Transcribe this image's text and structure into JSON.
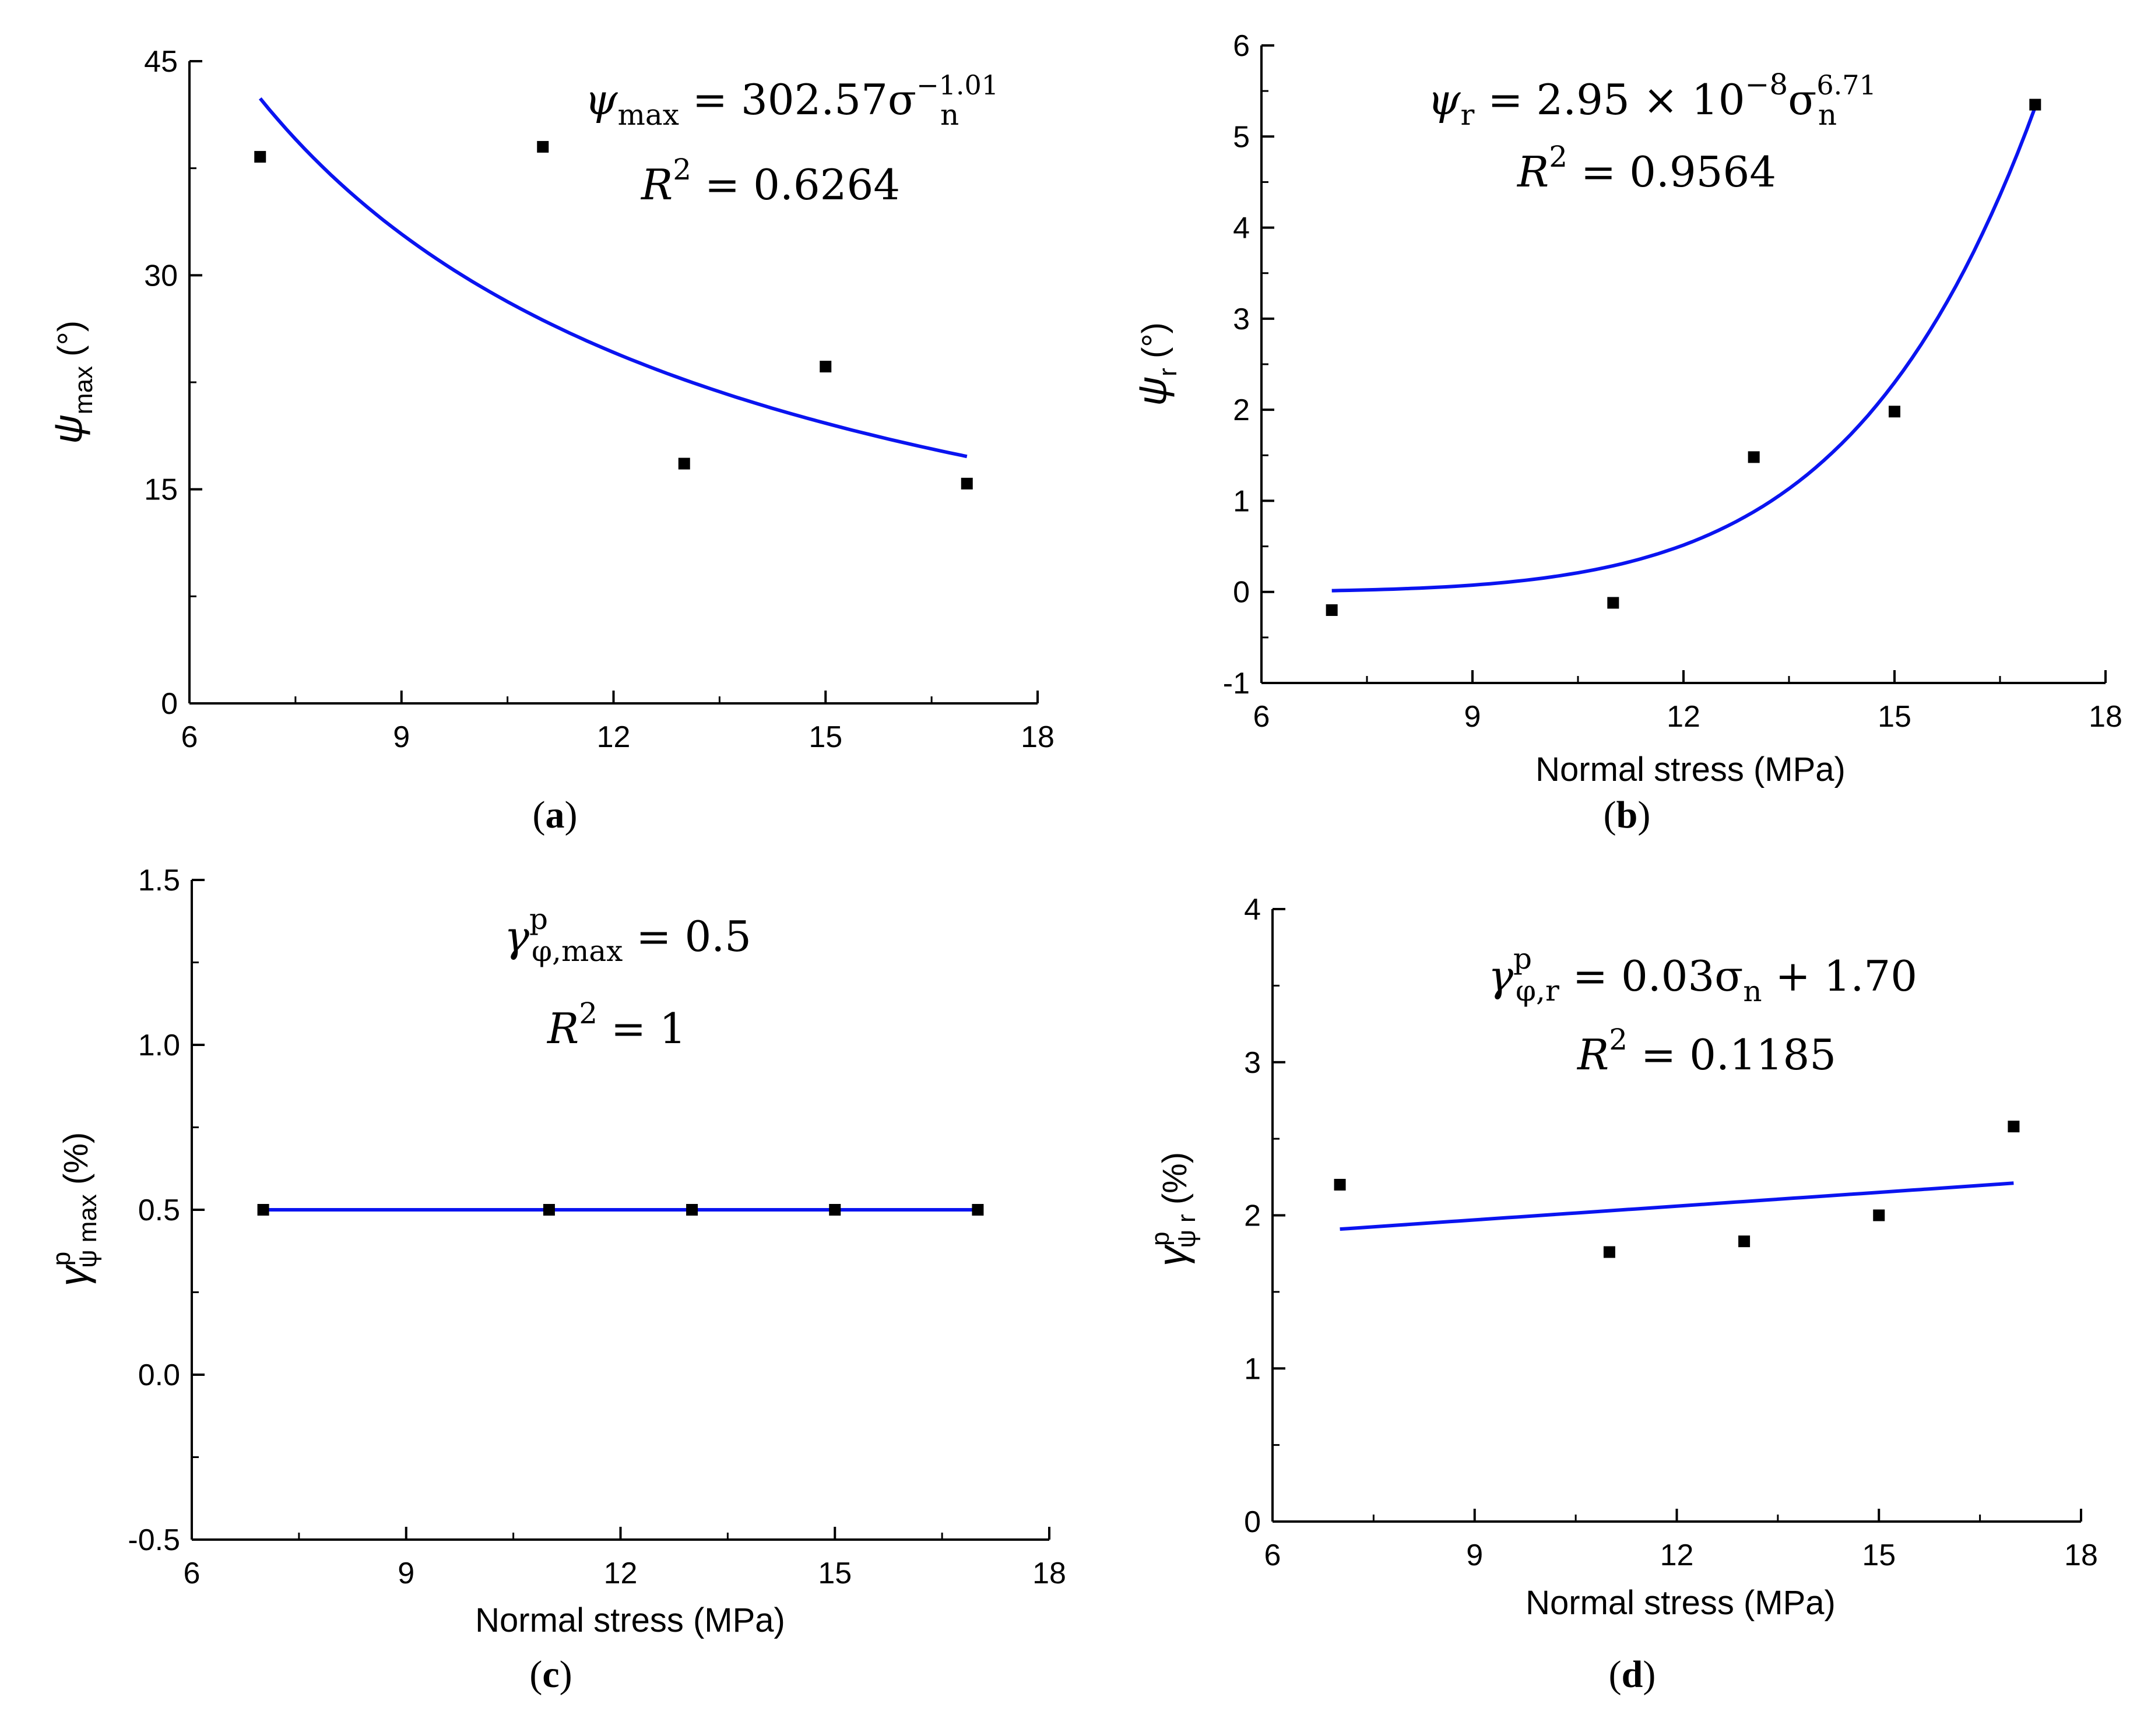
{
  "chart_data": [
    {
      "id": "a",
      "type": "scatter",
      "panel_label": "a",
      "ylabel": "ψ",
      "ylabel_sub": "max",
      "ylabel_unit": "(°)",
      "xlabel": "",
      "xlim": [
        6,
        18
      ],
      "ylim": [
        0,
        45
      ],
      "xticks": [
        6,
        9,
        12,
        15,
        18
      ],
      "yticks": [
        0,
        15,
        30,
        45
      ],
      "points": [
        {
          "x": 7,
          "y": 38.3
        },
        {
          "x": 11,
          "y": 39.0
        },
        {
          "x": 13,
          "y": 16.8
        },
        {
          "x": 15,
          "y": 23.6
        },
        {
          "x": 17,
          "y": 15.4
        }
      ],
      "fit": {
        "kind": "power",
        "a": 302.57,
        "b": -1.01,
        "x_from": 7,
        "x_to": 17
      },
      "equation": {
        "lhs": "ψ",
        "lhs_sub": "max",
        "rhs": "= 302.57σ",
        "rhs_sub": "n",
        "rhs_sup": "−1.01",
        "r2": "= 0.6264",
        "r2_label": "R"
      }
    },
    {
      "id": "b",
      "type": "scatter",
      "panel_label": "b",
      "ylabel": "ψ",
      "ylabel_sub": "r",
      "ylabel_unit": "(°)",
      "xlabel": "Normal stress (MPa)",
      "xlim": [
        6,
        18
      ],
      "ylim": [
        -1,
        6
      ],
      "xticks": [
        6,
        9,
        12,
        15,
        18
      ],
      "yticks": [
        -1,
        0,
        1,
        2,
        3,
        4,
        5,
        6
      ],
      "points": [
        {
          "x": 7,
          "y": -0.2
        },
        {
          "x": 11,
          "y": -0.12
        },
        {
          "x": 13,
          "y": 1.48
        },
        {
          "x": 15,
          "y": 1.98
        },
        {
          "x": 17,
          "y": 5.35
        }
      ],
      "fit": {
        "kind": "power",
        "a": 2.95e-08,
        "b": 6.71,
        "x_from": 7,
        "x_to": 17
      },
      "equation": {
        "lhs": "ψ",
        "lhs_sub": "r",
        "rhs": "= 2.95 × 10",
        "rhs_sup1": "−8",
        "rhs2": "σ",
        "rhs_sub": "n",
        "rhs_sup": "6.71",
        "r2": "= 0.9564",
        "r2_label": "R"
      }
    },
    {
      "id": "c",
      "type": "scatter",
      "panel_label": "c",
      "ylabel": "γ",
      "ylabel_sub": "ψ max",
      "ylabel_sup": "p",
      "ylabel_unit": "(%)",
      "xlabel": "Normal stress (MPa)",
      "xlim": [
        6,
        18
      ],
      "ylim": [
        -0.5,
        1.5
      ],
      "xticks": [
        6,
        9,
        12,
        15,
        18
      ],
      "yticks": [
        -0.5,
        0.0,
        0.5,
        1.0,
        1.5
      ],
      "ytick_format": 1,
      "points": [
        {
          "x": 7,
          "y": 0.5
        },
        {
          "x": 11,
          "y": 0.5
        },
        {
          "x": 13,
          "y": 0.5
        },
        {
          "x": 15,
          "y": 0.5
        },
        {
          "x": 17,
          "y": 0.5
        }
      ],
      "fit": {
        "kind": "linear",
        "m": 0,
        "c": 0.5,
        "x_from": 7,
        "x_to": 17
      },
      "equation": {
        "lhs": "γ",
        "lhs_sub": "φ,max",
        "lhs_sup": "p",
        "rhs": "= 0.5",
        "r2": "= 1",
        "r2_label": "R"
      }
    },
    {
      "id": "d",
      "type": "scatter",
      "panel_label": "d",
      "ylabel": "γ",
      "ylabel_sub": "ψ r",
      "ylabel_sup": "p",
      "ylabel_unit": "(%)",
      "xlabel": "Normal stress (MPa)",
      "xlim": [
        6,
        18
      ],
      "ylim": [
        0,
        4
      ],
      "xticks": [
        6,
        9,
        12,
        15,
        18
      ],
      "yticks": [
        0,
        1,
        2,
        3,
        4
      ],
      "points": [
        {
          "x": 7,
          "y": 2.2
        },
        {
          "x": 11,
          "y": 1.76
        },
        {
          "x": 13,
          "y": 1.83
        },
        {
          "x": 15,
          "y": 2.0
        },
        {
          "x": 17,
          "y": 2.58
        }
      ],
      "fit": {
        "kind": "linear",
        "m": 0.03,
        "c": 1.7,
        "x_from": 7,
        "x_to": 17
      },
      "equation": {
        "lhs": "γ",
        "lhs_sub": "φ,r",
        "lhs_sup": "p",
        "rhs": "= 0.03σ",
        "rhs_sub": "n",
        "rhs2": " + 1.70",
        "r2": "= 0.1185",
        "r2_label": "R"
      }
    }
  ]
}
